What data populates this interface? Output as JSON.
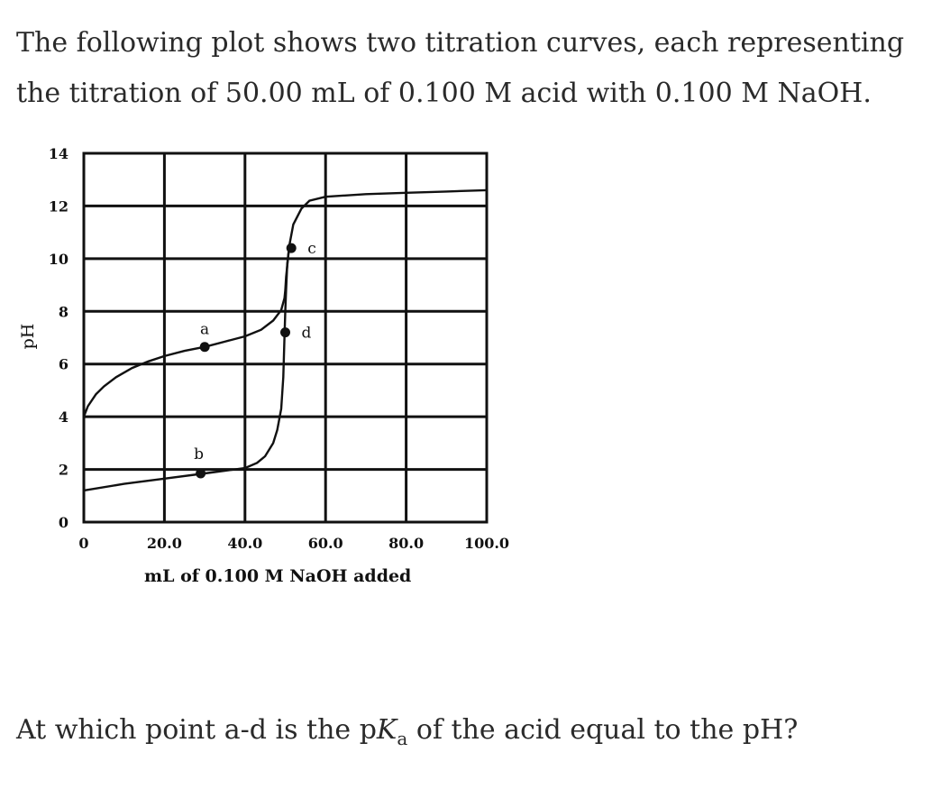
{
  "question": {
    "intro": "The following plot shows two titration curves, each representing the titration of 50.00 mL of 0.100 M acid with 0.100 M NaOH.",
    "prompt_before": "At which point a-d is the p",
    "prompt_var": "K",
    "prompt_sub": "a",
    "prompt_after": " of the acid equal to the pH?"
  },
  "chart_data": {
    "type": "line",
    "xlabel": "mL of 0.100 M NaOH added",
    "ylabel": "pH",
    "xlim": [
      0,
      100
    ],
    "ylim": [
      0,
      14
    ],
    "x_ticks": [
      0,
      20,
      40,
      60,
      80,
      100
    ],
    "x_tick_labels": [
      "0",
      "20.0",
      "40.0",
      "60.0",
      "80.0",
      "100.0"
    ],
    "y_ticks": [
      0,
      2,
      4,
      6,
      8,
      10,
      12,
      14
    ],
    "y_tick_labels": [
      "0",
      "2",
      "4",
      "6",
      "8",
      "10",
      "12",
      "14"
    ],
    "grid": true,
    "series": [
      {
        "x": [
          0,
          1,
          3,
          5,
          8,
          12,
          16,
          20,
          25,
          30,
          35,
          40,
          44,
          47,
          49,
          49.8,
          50,
          50.2,
          51,
          52,
          54,
          56,
          60,
          70,
          80,
          90,
          100
        ],
        "y": [
          4.0,
          4.4,
          4.85,
          5.15,
          5.5,
          5.85,
          6.1,
          6.3,
          6.5,
          6.65,
          6.85,
          7.05,
          7.3,
          7.65,
          8.05,
          8.5,
          8.8,
          9.3,
          10.5,
          11.3,
          11.9,
          12.2,
          12.35,
          12.45,
          12.5,
          12.55,
          12.6
        ]
      },
      {
        "x": [
          0,
          10,
          20,
          30,
          35,
          40,
          43,
          45,
          47,
          48,
          49,
          49.5,
          49.8,
          50,
          50.2,
          50.5,
          51
        ],
        "y": [
          1.2,
          1.45,
          1.65,
          1.85,
          1.95,
          2.05,
          2.25,
          2.5,
          3.0,
          3.5,
          4.3,
          5.5,
          7.0,
          8.0,
          8.8,
          9.8,
          10.5
        ]
      }
    ],
    "points": [
      {
        "label": "a",
        "x": 30,
        "y": 6.65
      },
      {
        "label": "b",
        "x": 29,
        "y": 1.85
      },
      {
        "label": "c",
        "x": 51.5,
        "y": 10.4
      },
      {
        "label": "d",
        "x": 50,
        "y": 7.2
      }
    ]
  }
}
